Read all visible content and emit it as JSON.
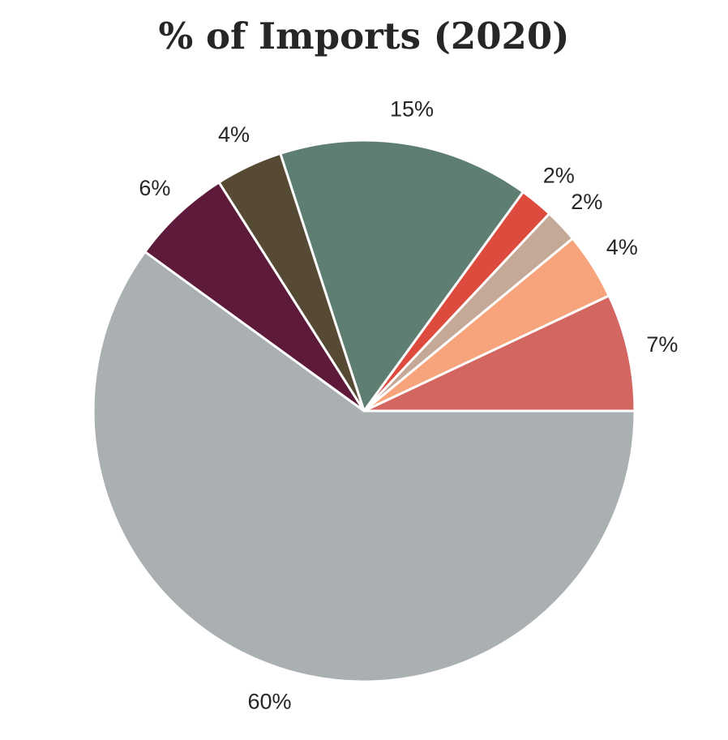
{
  "chart_data": {
    "type": "pie",
    "title": "% of Imports (2020)",
    "start_angle_deg": 0,
    "direction": "counterclockwise",
    "slices": [
      {
        "label": "7%",
        "value": 7,
        "color": "#D46661"
      },
      {
        "label": "4%",
        "value": 4,
        "color": "#F7A47C"
      },
      {
        "label": "2%",
        "value": 2,
        "color": "#C4A898"
      },
      {
        "label": "2%",
        "value": 2,
        "color": "#DC4B3D"
      },
      {
        "label": "15%",
        "value": 15,
        "color": "#5D7E70"
      },
      {
        "label": "4%",
        "value": 4,
        "color": "#574A35"
      },
      {
        "label": "6%",
        "value": 6,
        "color": "#5D1A3A"
      },
      {
        "label": "60%",
        "value": 60,
        "color": "#AAB0B1"
      }
    ]
  }
}
